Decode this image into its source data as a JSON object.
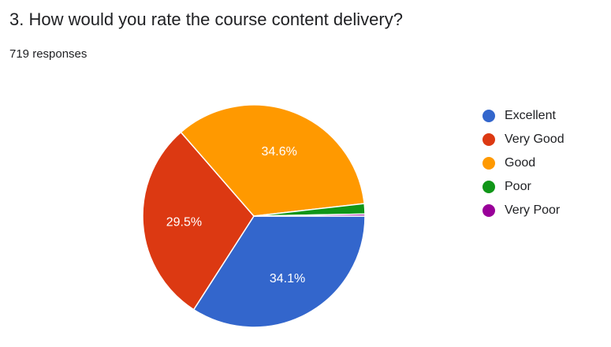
{
  "question": {
    "title": "3. How would you rate the course content delivery?",
    "responses": "719 responses"
  },
  "chart_data": {
    "type": "pie",
    "categories": [
      "Excellent",
      "Very Good",
      "Good",
      "Poor",
      "Very Poor"
    ],
    "values": [
      34.1,
      29.5,
      34.6,
      1.5,
      0.3
    ],
    "data_labels": [
      "34.1%",
      "29.5%",
      "34.6%",
      "",
      ""
    ],
    "colors": [
      "#3366cc",
      "#dc3912",
      "#ff9900",
      "#109618",
      "#990099"
    ],
    "legend_position": "right"
  }
}
